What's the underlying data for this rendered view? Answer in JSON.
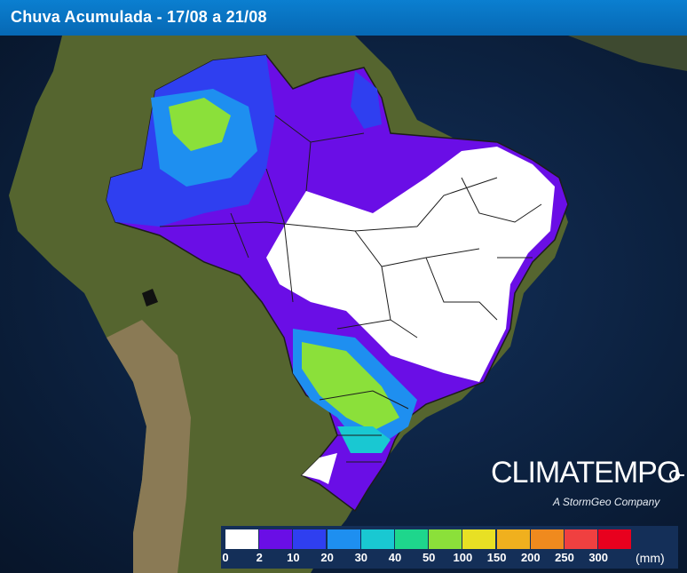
{
  "header": {
    "title": "Chuva Acumulada - 17/08 a 21/08"
  },
  "map": {
    "subject": "Brazil accumulated rainfall over satellite imagery",
    "land_color": "#5b6a2f",
    "ocean_color": "#0c2340",
    "border_color": "#1c1c1c"
  },
  "brand": {
    "name": "CLIMATEMPO",
    "tagline": "A StormGeo Company",
    "color": "#ffffff"
  },
  "legend": {
    "colors": [
      "#ffffff",
      "#6a0ee6",
      "#2f3ff0",
      "#1e8ff0",
      "#19c8d2",
      "#1ed68c",
      "#8be03a",
      "#e8e024",
      "#f0b01e",
      "#f08a1e",
      "#f04040",
      "#e8001e"
    ],
    "labels": [
      "0",
      "2",
      "10",
      "20",
      "30",
      "40",
      "50",
      "100",
      "150",
      "200",
      "250",
      "300"
    ],
    "unit": "(mm)"
  }
}
